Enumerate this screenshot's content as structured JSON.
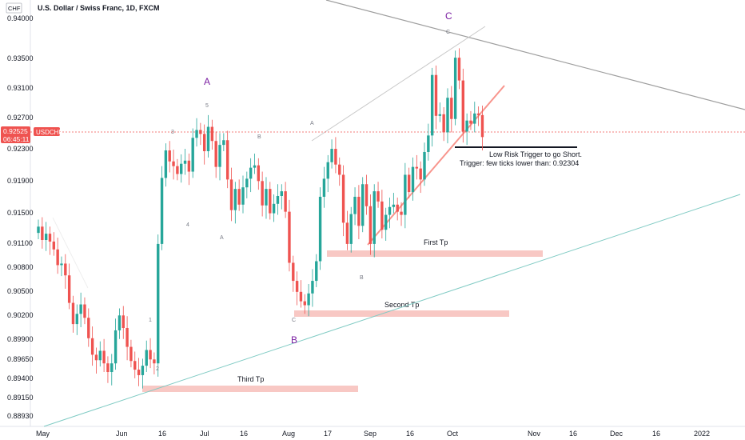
{
  "header": {
    "currency_badge": "CHF",
    "title": "U.S. Dollar / Swiss Franc, 1D, FXCM"
  },
  "price_tag": {
    "price": "0.92525",
    "countdown": "06:45:11",
    "symbol": "USDCHF"
  },
  "colors": {
    "up": "#26a69a",
    "down": "#ef5350",
    "wave_label": "#7b1fa2",
    "target_zone": "#f8c8c4",
    "channel_line": "#f8958d",
    "resistance_line": "#9e9e9e",
    "support_line": "#80cbc4"
  },
  "chart_data": {
    "type": "candlestick",
    "title": "U.S. Dollar / Swiss Franc, 1D, FXCM",
    "y_ticks": [
      "0.94000",
      "0.93500",
      "0.93100",
      "0.92700",
      "0.92300",
      "0.91900",
      "0.91500",
      "0.91100",
      "0.90800",
      "0.90500",
      "0.90200",
      "0.89900",
      "0.89650",
      "0.89400",
      "0.89150",
      "0.88930"
    ],
    "x_ticks": [
      "May",
      "Jun",
      "16",
      "Jul",
      "16",
      "Aug",
      "17",
      "Sep",
      "16",
      "Oct",
      "Nov",
      "16",
      "Dec",
      "16",
      "2022"
    ],
    "ylim": [
      0.8885,
      0.9405
    ],
    "candles_close": [
      0.9135,
      0.9118,
      0.9126,
      0.9116,
      0.9106,
      0.9086,
      0.9088,
      0.9073,
      0.9038,
      0.9011,
      0.9024,
      0.9036,
      0.9019,
      0.8993,
      0.8972,
      0.8965,
      0.8977,
      0.8961,
      0.895,
      0.8961,
      0.9003,
      0.9022,
      0.9006,
      0.8982,
      0.8964,
      0.8953,
      0.8946,
      0.8958,
      0.8978,
      0.8966,
      0.8961,
      0.9113,
      0.9197,
      0.9232,
      0.9218,
      0.9212,
      0.9202,
      0.9215,
      0.9219,
      0.9205,
      0.9248,
      0.9258,
      0.9253,
      0.9231,
      0.9262,
      0.9244,
      0.9211,
      0.9239,
      0.9245,
      0.9195,
      0.9156,
      0.9183,
      0.9163,
      0.9185,
      0.9196,
      0.921,
      0.9213,
      0.9193,
      0.9162,
      0.9183,
      0.9152,
      0.9164,
      0.9174,
      0.918,
      0.9154,
      0.9089,
      0.9066,
      0.9052,
      0.904,
      0.9035,
      0.905,
      0.9066,
      0.9091,
      0.9173,
      0.9196,
      0.9217,
      0.9234,
      0.9214,
      0.9201,
      0.914,
      0.9113,
      0.9151,
      0.9173,
      0.9136,
      0.9189,
      0.9161,
      0.9113,
      0.918,
      0.9167,
      0.9131,
      0.915,
      0.916,
      0.9163,
      0.9154,
      0.915,
      0.9201,
      0.9179,
      0.9211,
      0.9209,
      0.9195,
      0.923,
      0.9251,
      0.9328,
      0.9276,
      0.9278,
      0.9255,
      0.9299,
      0.9272,
      0.935,
      0.9321,
      0.9256,
      0.927,
      0.9266,
      0.9279,
      0.9277,
      0.9249
    ],
    "wave_labels_major": [
      "A",
      "B",
      "C"
    ],
    "wave_labels_minor": [
      "1",
      "2",
      "3",
      "4",
      "5",
      "A",
      "B",
      "C",
      "A",
      "B",
      "C"
    ],
    "zones": [
      {
        "label": "First Tp",
        "price": 0.9102
      },
      {
        "label": "Second Tp",
        "price": 0.9021
      },
      {
        "label": "Third Tp",
        "price": 0.8927
      }
    ],
    "trigger_notes": [
      "Low Risk Trigger to go Short.",
      "Trigger: few ticks lower than: 0.92304"
    ],
    "trigger_price": 0.92304,
    "last_price": 0.92525
  }
}
